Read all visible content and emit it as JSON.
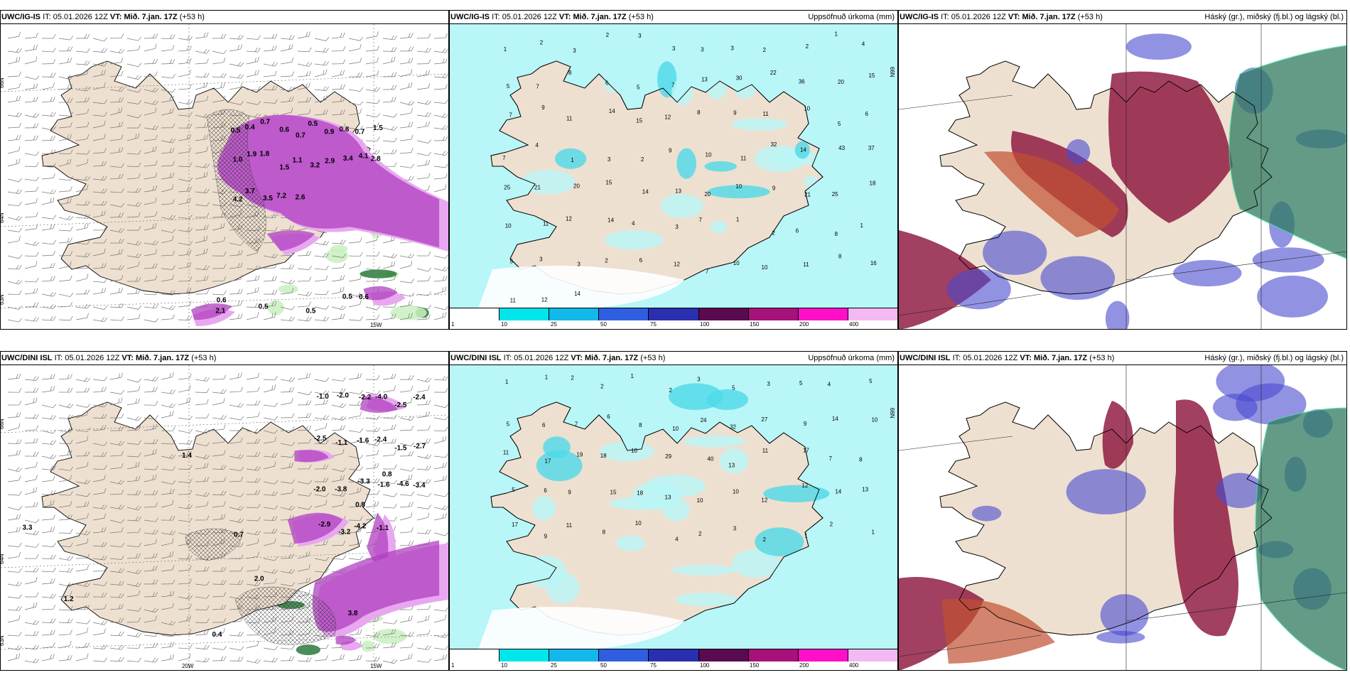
{
  "panels": [
    {
      "model": "UWC/IG-IS",
      "it_label": "IT:",
      "it_value": "05.01.2026 12Z",
      "vt_label": "VT:",
      "vt_value": "Mið. 7.jan. 17Z",
      "lead": "(+53 h)",
      "right_title": "",
      "type": "precip-wind",
      "lon_labels": [
        "15W"
      ],
      "lat_labels": [
        "66N",
        "64N",
        "63N"
      ],
      "values": [
        "0.5",
        "0.4",
        "0.7",
        "0.6",
        "0.7",
        "0.5",
        "0.9",
        "0.8",
        "0.7",
        "1.5",
        "1.0",
        "1.9",
        "1.8",
        "1.5",
        "1.1",
        "3.2",
        "2.9",
        "3.4",
        "4.1",
        "2.8",
        "4.2",
        "3.7",
        "3.5",
        "7.2",
        "2.6",
        "0.5",
        "0.6",
        "0.5",
        "2.1",
        "0.5",
        "0.6"
      ]
    },
    {
      "model": "UWC/IG-IS",
      "it_label": "IT:",
      "it_value": "05.01.2026 12Z",
      "vt_label": "VT:",
      "vt_value": "Mið. 7.jan. 17Z",
      "lead": "(+53 h)",
      "right_title": "Uppsöfnuð úrkoma (mm)",
      "type": "accum",
      "lat_labels": [
        "66N"
      ],
      "values": [
        "1",
        "2",
        "3",
        "2",
        "3",
        "3",
        "3",
        "3",
        "2",
        "2",
        "1",
        "4",
        "5",
        "7",
        "8",
        "6",
        "5",
        "7",
        "13",
        "30",
        "22",
        "36",
        "20",
        "15",
        "7",
        "9",
        "11",
        "14",
        "15",
        "12",
        "8",
        "9",
        "11",
        "10",
        "5",
        "6",
        "7",
        "4",
        "1",
        "3",
        "2",
        "9",
        "10",
        "11",
        "32",
        "14",
        "43",
        "37",
        "25",
        "21",
        "20",
        "15",
        "14",
        "13",
        "20",
        "10",
        "9",
        "21",
        "25",
        "18",
        "10",
        "11",
        "12",
        "14",
        "4",
        "3",
        "7",
        "1",
        "2",
        "6",
        "8",
        "1",
        "5",
        "3",
        "3",
        "2",
        "6",
        "12",
        "7",
        "10",
        "10",
        "11",
        "8",
        "16",
        "11",
        "12",
        "14"
      ],
      "colorbar_ticks": [
        "1",
        "10",
        "25",
        "50",
        "75",
        "100",
        "150",
        "200",
        "400"
      ]
    },
    {
      "model": "UWC/IG-IS",
      "it_label": "IT:",
      "it_value": "05.01.2026 12Z",
      "vt_label": "VT:",
      "vt_value": "Mið. 7.jan. 17Z",
      "lead": "(+53 h)",
      "right_title": "Háský (gr.), miðský (fj.bl.) og lágský (bl.)",
      "type": "cloud"
    },
    {
      "model": "UWC/DINI ISL",
      "it_label": "IT:",
      "it_value": "05.01.2026 12Z",
      "vt_label": "VT:",
      "vt_value": "Mið. 7.jan. 17Z",
      "lead": "(+53 h)",
      "right_title": "",
      "type": "precip-wind",
      "lon_labels": [
        "20W",
        "15W"
      ],
      "lat_labels": [
        "66N",
        "64N",
        "63N"
      ],
      "values": [
        "-1.0",
        "-2.0",
        "-2.2",
        "-4.0",
        "-2.5",
        "-2.4",
        "-2.5",
        "-1.1",
        "-1.6",
        "-2.4",
        "-1.5",
        "-2.7",
        "-2.0",
        "-3.8",
        "-3.3",
        "-1.6",
        "-4.6",
        "-3.4",
        "-2.9",
        "-3.2",
        "-4.2",
        "-1.1",
        "0.4",
        "0.8",
        "1.4",
        "1.2",
        "3.3",
        "3.8",
        "2.0",
        "0.8",
        "0.7"
      ]
    },
    {
      "model": "UWC/DINI ISL",
      "it_label": "IT:",
      "it_value": "05.01.2026 12Z",
      "vt_label": "VT:",
      "vt_value": "Mið. 7.jan. 17Z",
      "lead": "(+53 h)",
      "right_title": "Uppsöfnuð úrkoma (mm)",
      "type": "accum",
      "lat_labels": [
        "66N"
      ],
      "values": [
        "1",
        "1",
        "2",
        "2",
        "1",
        "2",
        "3",
        "5",
        "3",
        "5",
        "4",
        "5",
        "5",
        "6",
        "7",
        "6",
        "8",
        "10",
        "24",
        "32",
        "27",
        "9",
        "14",
        "10",
        "11",
        "17",
        "19",
        "18",
        "10",
        "29",
        "40",
        "13",
        "11",
        "17",
        "7",
        "8",
        "5",
        "6",
        "9",
        "15",
        "18",
        "13",
        "10",
        "10",
        "12",
        "12",
        "14",
        "13",
        "17",
        "9",
        "11",
        "8",
        "10",
        "4",
        "2",
        "3",
        "2",
        "1",
        "2",
        "1"
      ],
      "colorbar_ticks": [
        "1",
        "10",
        "25",
        "50",
        "75",
        "100",
        "150",
        "200",
        "400"
      ]
    },
    {
      "model": "UWC/DINI ISL",
      "it_label": "IT:",
      "it_value": "05.01.2026 12Z",
      "vt_label": "VT:",
      "vt_value": "Mið. 7.jan. 17Z",
      "lead": "(+53 h)",
      "right_title": "Háský (gr.), miðský (fj.bl.) og lágský (bl.)",
      "type": "cloud"
    }
  ],
  "colors": {
    "land": "#eee0d0",
    "sea_light": "#b8f6f8",
    "sea_mid": "#4dd9e8",
    "accum_colorbar": [
      "#ffffff",
      "#00e6ea",
      "#12b8ea",
      "#2f5fe0",
      "#2a2fb0",
      "#5a0a4e",
      "#a8107a",
      "#ff10c8",
      "#f4b8f4"
    ],
    "precip_light": "#e8a8f0",
    "precip_mid": "#b040c0",
    "precip_dark": "#5a1060",
    "green_light": "#c8f0c0",
    "green_dark": "#2a7a3a",
    "high_cloud": "#2f7a60",
    "mid_cloud": "#4a4ad0",
    "low_cloud": "#8a1038",
    "land_cloud": "#c05030"
  }
}
